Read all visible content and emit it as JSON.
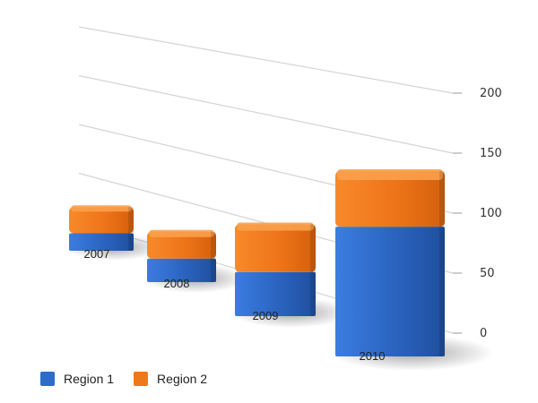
{
  "chart_data": {
    "type": "bar",
    "stacked": true,
    "style": "3d-perspective",
    "categories": [
      "2007",
      "2008",
      "2009",
      "2010"
    ],
    "series": [
      {
        "name": "Region 1",
        "values": [
          30,
          35,
          60,
          140
        ],
        "color": "#2e6cc9"
      },
      {
        "name": "Region 2",
        "values": [
          45,
          40,
          65,
          60
        ],
        "color": "#f0781c"
      }
    ],
    "ylim": [
      0,
      200
    ],
    "yticks": [
      0,
      50,
      100,
      150,
      200
    ],
    "grid": true,
    "axis_side": "right",
    "legend": "bottom-left",
    "title": "",
    "xlabel": "",
    "ylabel": ""
  }
}
